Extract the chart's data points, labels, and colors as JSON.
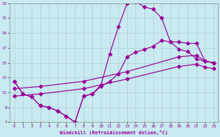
{
  "xlabel": "Windchill (Refroidissement éolien,°C)",
  "xlim": [
    -0.5,
    23.5
  ],
  "ylim": [
    7,
    23
  ],
  "xticks": [
    0,
    1,
    2,
    3,
    4,
    5,
    6,
    7,
    8,
    9,
    10,
    11,
    12,
    13,
    14,
    15,
    16,
    17,
    18,
    19,
    20,
    21,
    22,
    23
  ],
  "yticks": [
    7,
    9,
    11,
    13,
    15,
    17,
    19,
    21,
    23
  ],
  "bg_color": "#c8eaf0",
  "line_color": "#990099",
  "grid_color": "#b0ccd4",
  "line1_x": [
    0,
    1,
    2,
    3,
    4,
    5,
    6,
    7,
    8,
    9,
    10,
    11,
    12,
    13,
    14,
    15,
    16,
    17,
    18,
    19,
    20,
    21,
    22,
    23
  ],
  "line1_y": [
    12.5,
    10.8,
    10.4,
    9.2,
    9.0,
    8.5,
    7.8,
    7.0,
    10.5,
    10.8,
    12.0,
    16.2,
    19.8,
    23.0,
    23.2,
    22.5,
    22.2,
    21.0,
    17.8,
    17.8,
    17.6,
    17.6,
    15.2,
    15.0
  ],
  "line2_x": [
    0,
    1,
    2,
    3,
    4,
    5,
    6,
    7,
    8,
    9,
    10,
    11,
    12,
    13,
    14,
    15,
    16,
    17,
    18,
    19,
    20,
    21,
    22,
    23
  ],
  "line2_y": [
    12.5,
    10.8,
    10.4,
    9.2,
    9.0,
    8.5,
    7.8,
    7.0,
    10.5,
    10.8,
    11.8,
    12.5,
    13.5,
    15.8,
    16.4,
    16.8,
    17.2,
    18.0,
    17.8,
    16.8,
    16.5,
    15.5,
    15.2,
    15.0
  ],
  "line3_x": [
    0,
    3,
    8,
    13,
    19,
    21,
    22,
    23
  ],
  "line3_y": [
    11.5,
    11.8,
    12.5,
    13.8,
    15.8,
    16.0,
    15.2,
    15.0
  ],
  "line4_x": [
    0,
    3,
    8,
    13,
    19,
    21,
    22,
    23
  ],
  "line4_y": [
    10.5,
    10.8,
    11.5,
    12.8,
    14.5,
    14.8,
    14.4,
    14.2
  ],
  "marker": "D",
  "markersize": 2.5,
  "linewidth": 0.9
}
